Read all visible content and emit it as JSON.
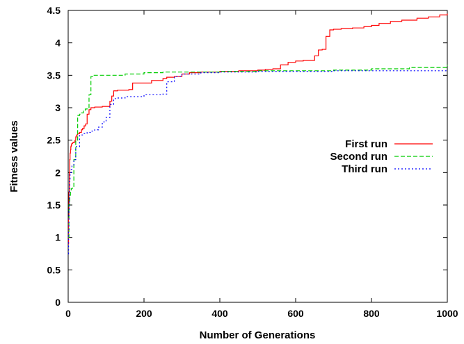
{
  "chart_data": {
    "type": "line",
    "title": "",
    "xlabel": "Number of Generations",
    "ylabel": "Fitness values",
    "xlim": [
      0,
      1000
    ],
    "ylim": [
      0,
      4.5
    ],
    "x_ticks": [
      0,
      200,
      400,
      600,
      800,
      1000
    ],
    "y_ticks": [
      0,
      0.5,
      1,
      1.5,
      2,
      2.5,
      3,
      3.5,
      4,
      4.5
    ],
    "x_tick_labels": [
      "0",
      "200",
      "400",
      "600",
      "800",
      "1000"
    ],
    "y_tick_labels": [
      "0",
      "0.5",
      "1",
      "1.5",
      "2",
      "2.5",
      "3",
      "3.5",
      "4",
      "4.5"
    ],
    "grid": false,
    "legend_position": "right",
    "series": [
      {
        "name": "First run",
        "color": "#ff0000",
        "dash": "solid",
        "x": [
          0,
          1,
          2,
          3,
          4,
          5,
          6,
          7,
          8,
          9,
          10,
          12,
          15,
          18,
          20,
          22,
          25,
          30,
          35,
          38,
          42,
          46,
          50,
          55,
          60,
          65,
          70,
          80,
          90,
          100,
          110,
          115,
          120,
          130,
          140,
          160,
          170,
          200,
          220,
          250,
          260,
          280,
          300,
          320,
          350,
          380,
          400,
          450,
          500,
          520,
          540,
          560,
          580,
          600,
          620,
          640,
          650,
          660,
          670,
          680,
          690,
          700,
          720,
          750,
          780,
          800,
          820,
          850,
          880,
          900,
          920,
          950,
          980,
          1000
        ],
        "y": [
          0.9,
          1.3,
          1.7,
          2.0,
          2.2,
          2.3,
          2.35,
          2.4,
          2.42,
          2.44,
          2.45,
          2.46,
          2.47,
          2.5,
          2.55,
          2.58,
          2.6,
          2.62,
          2.66,
          2.68,
          2.72,
          2.75,
          2.9,
          2.97,
          3.0,
          3.0,
          3.01,
          3.01,
          3.02,
          3.02,
          3.1,
          3.18,
          3.26,
          3.27,
          3.27,
          3.28,
          3.38,
          3.38,
          3.42,
          3.45,
          3.47,
          3.48,
          3.52,
          3.54,
          3.55,
          3.55,
          3.56,
          3.57,
          3.58,
          3.59,
          3.6,
          3.66,
          3.7,
          3.72,
          3.73,
          3.73,
          3.8,
          3.89,
          3.9,
          4.1,
          4.2,
          4.21,
          4.22,
          4.23,
          4.25,
          4.27,
          4.3,
          4.33,
          4.35,
          4.35,
          4.38,
          4.4,
          4.43,
          4.45
        ]
      },
      {
        "name": "Second run",
        "color": "#00cc00",
        "dash": "dashed",
        "x": [
          0,
          2,
          4,
          6,
          8,
          10,
          15,
          20,
          25,
          30,
          35,
          40,
          45,
          50,
          55,
          60,
          65,
          100,
          150,
          200,
          250,
          300,
          400,
          500,
          600,
          700,
          800,
          900,
          1000
        ],
        "y": [
          1.0,
          1.5,
          1.65,
          1.72,
          1.75,
          1.76,
          2.2,
          2.5,
          2.88,
          2.9,
          2.92,
          2.95,
          2.98,
          3.0,
          3.2,
          3.48,
          3.5,
          3.5,
          3.52,
          3.54,
          3.55,
          3.55,
          3.56,
          3.57,
          3.57,
          3.58,
          3.6,
          3.62,
          3.66
        ]
      },
      {
        "name": "Third run",
        "color": "#0000ff",
        "dash": "dotted",
        "x": [
          0,
          1,
          2,
          3,
          4,
          5,
          8,
          10,
          15,
          20,
          30,
          40,
          50,
          60,
          70,
          80,
          90,
          100,
          110,
          120,
          130,
          150,
          200,
          250,
          260,
          280,
          300,
          350,
          400,
          500,
          600,
          700,
          800,
          900,
          1000
        ],
        "y": [
          0.75,
          1.1,
          1.4,
          1.7,
          1.9,
          2.0,
          2.05,
          2.1,
          2.2,
          2.4,
          2.58,
          2.6,
          2.62,
          2.64,
          2.66,
          2.7,
          2.78,
          2.85,
          3.05,
          3.14,
          3.15,
          3.17,
          3.2,
          3.21,
          3.4,
          3.48,
          3.52,
          3.54,
          3.55,
          3.56,
          3.56,
          3.57,
          3.57,
          3.57,
          3.57
        ]
      }
    ]
  }
}
